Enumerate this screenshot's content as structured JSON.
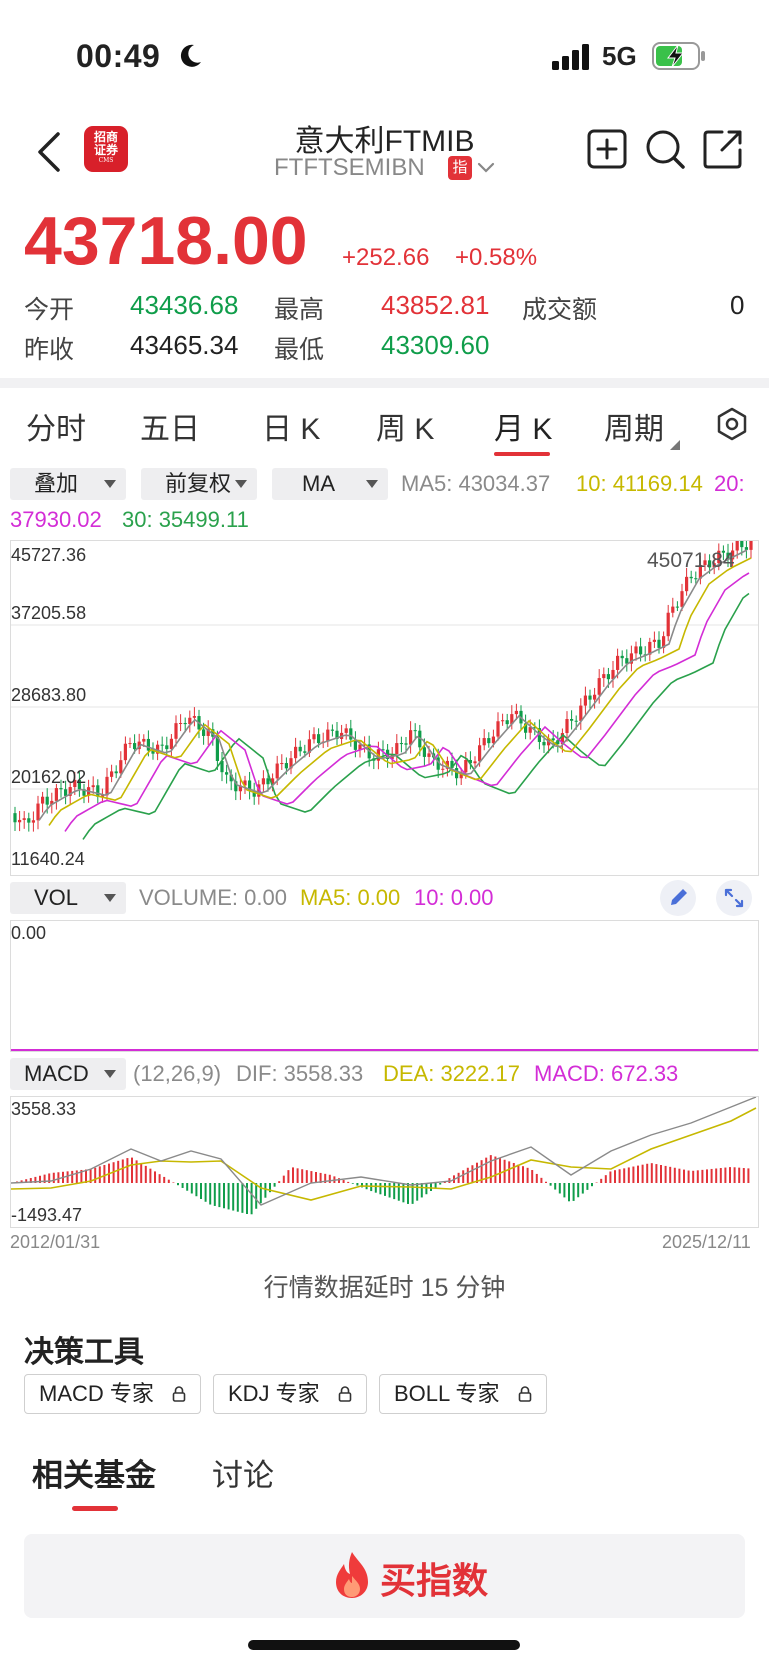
{
  "status_bar": {
    "time": "00:49",
    "network": "5G"
  },
  "header": {
    "logo_line1": "招商",
    "logo_line2": "证券",
    "logo_small": "CMS",
    "title": "意大利FTMIB",
    "subtitle": "FTFTSEMIBN",
    "index_tag": "指"
  },
  "quote": {
    "price": "43718.00",
    "change": "+252.66",
    "change_pct": "+0.58%",
    "open_label": "今开",
    "open": "43436.68",
    "high_label": "最高",
    "high": "43852.81",
    "turnover_label": "成交额",
    "turnover": "0",
    "prev_close_label": "昨收",
    "prev_close": "43465.34",
    "low_label": "最低",
    "low": "43309.60"
  },
  "tabs": [
    "分时",
    "五日",
    "日 K",
    "周 K",
    "月 K",
    "周期"
  ],
  "active_tab": "月 K",
  "controls": {
    "overlay": "叠加",
    "adjust": "前复权",
    "indicator": "MA",
    "ma5": "MA5: 43034.37",
    "ma10": "10: 41169.14",
    "ma20_prefix": "20:",
    "ma20": "37930.02",
    "ma30": "30: 35499.11"
  },
  "price_chart": {
    "y_labels": [
      "45727.36",
      "37205.58",
      "28683.80",
      "20162.02",
      "11640.24"
    ],
    "max_marker": "45071.84"
  },
  "volume": {
    "indicator": "VOL",
    "volume": "VOLUME: 0.00",
    "ma5": "MA5: 0.00",
    "ma10": "10: 0.00",
    "y_label": "0.00"
  },
  "macd": {
    "indicator": "MACD",
    "params": "(12,26,9)",
    "dif": "DIF: 3558.33",
    "dea": "DEA: 3222.17",
    "macd": "MACD: 672.33",
    "y_top": "3558.33",
    "y_bottom": "-1493.47"
  },
  "dates": {
    "start": "2012/01/31",
    "end": "2025/12/11"
  },
  "delay_note": "行情数据延时 15 分钟",
  "tools": {
    "title": "决策工具",
    "chips": [
      "MACD 专家",
      "KDJ 专家",
      "BOLL 专家"
    ]
  },
  "bottom_tabs": [
    "相关基金",
    "讨论"
  ],
  "buy_button": "买指数",
  "colors": {
    "up": "#e23238",
    "down": "#0f9d4a",
    "ma5": "#8a8a8a",
    "ma10": "#c6b800",
    "ma20": "#d32dd6",
    "ma30": "#2aa14c"
  }
}
